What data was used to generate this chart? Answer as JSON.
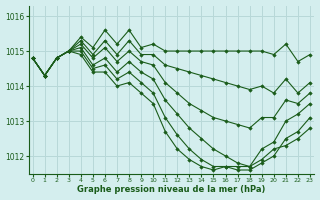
{
  "title": "Graphe pression niveau de la mer (hPa)",
  "bg_color": "#d4eeee",
  "grid_color": "#b8d8d8",
  "line_color": "#1a5c1a",
  "marker_color": "#1a5c1a",
  "xlim": [
    -0.3,
    23.3
  ],
  "ylim": [
    1011.5,
    1016.3
  ],
  "yticks": [
    1012,
    1013,
    1014,
    1015,
    1016
  ],
  "xticks": [
    0,
    1,
    2,
    3,
    4,
    5,
    6,
    7,
    8,
    9,
    10,
    11,
    12,
    13,
    14,
    15,
    16,
    17,
    18,
    19,
    20,
    21,
    22,
    23
  ],
  "series": [
    [
      1014.8,
      1014.3,
      1014.8,
      1015.0,
      1015.4,
      1015.1,
      1015.6,
      1015.2,
      1015.6,
      1015.1,
      1015.2,
      1015.0,
      1015.0,
      1015.0,
      1015.0,
      1015.0,
      1015.0,
      1015.0,
      1015.0,
      1015.0,
      1014.9,
      1015.2,
      1014.7,
      1014.9
    ],
    [
      1014.8,
      1014.3,
      1014.8,
      1015.0,
      1015.3,
      1014.9,
      1015.3,
      1014.9,
      1015.3,
      1014.9,
      1014.9,
      1014.6,
      1014.5,
      1014.4,
      1014.3,
      1014.2,
      1014.1,
      1014.0,
      1013.9,
      1014.0,
      1013.8,
      1014.2,
      1013.8,
      1014.1
    ],
    [
      1014.8,
      1014.3,
      1014.8,
      1015.0,
      1015.2,
      1014.8,
      1015.1,
      1014.7,
      1015.0,
      1014.7,
      1014.6,
      1014.1,
      1013.8,
      1013.5,
      1013.3,
      1013.1,
      1013.0,
      1012.9,
      1012.8,
      1013.1,
      1013.1,
      1013.6,
      1013.5,
      1013.8
    ],
    [
      1014.8,
      1014.3,
      1014.8,
      1015.0,
      1015.1,
      1014.6,
      1014.8,
      1014.4,
      1014.7,
      1014.4,
      1014.2,
      1013.6,
      1013.2,
      1012.8,
      1012.5,
      1012.2,
      1012.0,
      1011.8,
      1011.7,
      1012.2,
      1012.4,
      1013.0,
      1013.2,
      1013.5
    ],
    [
      1014.8,
      1014.3,
      1014.8,
      1015.0,
      1015.0,
      1014.5,
      1014.6,
      1014.2,
      1014.4,
      1014.1,
      1013.8,
      1013.1,
      1012.6,
      1012.2,
      1011.9,
      1011.7,
      1011.7,
      1011.6,
      1011.6,
      1011.8,
      1012.0,
      1012.5,
      1012.7,
      1013.1
    ],
    [
      1014.8,
      1014.3,
      1014.8,
      1015.0,
      1014.9,
      1014.4,
      1014.4,
      1014.0,
      1014.1,
      1013.8,
      1013.5,
      1012.7,
      1012.2,
      1011.9,
      1011.7,
      1011.6,
      1011.7,
      1011.7,
      1011.7,
      1011.9,
      1012.2,
      1012.3,
      1012.5,
      1012.8
    ]
  ]
}
